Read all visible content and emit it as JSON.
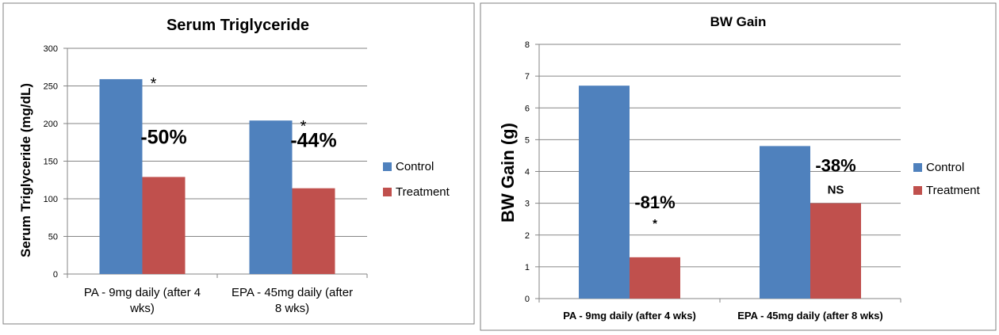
{
  "charts": [
    {
      "type": "bar",
      "title": "Serum Triglyceride",
      "ylabel": "Serum Triglyceride (mg/dL)",
      "xlabel": "",
      "ylim": [
        0,
        300
      ],
      "yticks": [
        "0",
        "50",
        "100",
        "150",
        "200",
        "250",
        "300"
      ],
      "categories": [
        [
          "PA - 9mg daily (after 4",
          "wks)"
        ],
        [
          "EPA -  45mg daily (after",
          "8 wks)"
        ]
      ],
      "series": [
        {
          "name": "Control",
          "color": "#4F81BD",
          "values": [
            259,
            204
          ]
        },
        {
          "name": "Treatment",
          "color": "#C0504D",
          "values": [
            129,
            114
          ]
        }
      ],
      "annotations": [
        {
          "category": 0,
          "text": "-50%"
        },
        {
          "category": 1,
          "text": "-44%"
        }
      ],
      "significance": [
        {
          "category": 0,
          "series": 0,
          "text": "*"
        },
        {
          "category": 1,
          "series": 0,
          "text": "*"
        }
      ],
      "legend_position": "right",
      "grid": true
    },
    {
      "type": "bar",
      "title": "BW Gain",
      "ylabel": "BW Gain (g)",
      "xlabel": "",
      "ylim": [
        0,
        8
      ],
      "yticks": [
        "0",
        "1",
        "2",
        "3",
        "4",
        "5",
        "6",
        "7",
        "8"
      ],
      "categories": [
        [
          "PA - 9mg daily (after 4 wks)"
        ],
        [
          "EPA -  45mg daily (after 8 wks)"
        ]
      ],
      "series": [
        {
          "name": "Control",
          "color": "#4F81BD",
          "values": [
            6.7,
            4.8
          ]
        },
        {
          "name": "Treatment",
          "color": "#C0504D",
          "values": [
            1.3,
            3.0
          ]
        }
      ],
      "annotations": [
        {
          "category": 0,
          "text": "-81%"
        },
        {
          "category": 1,
          "text": "-38%"
        }
      ],
      "significance": [
        {
          "category": 0,
          "series": 1,
          "text": "*"
        },
        {
          "category": 1,
          "series": 1,
          "text": "NS"
        }
      ],
      "legend_position": "right",
      "grid": true
    }
  ]
}
